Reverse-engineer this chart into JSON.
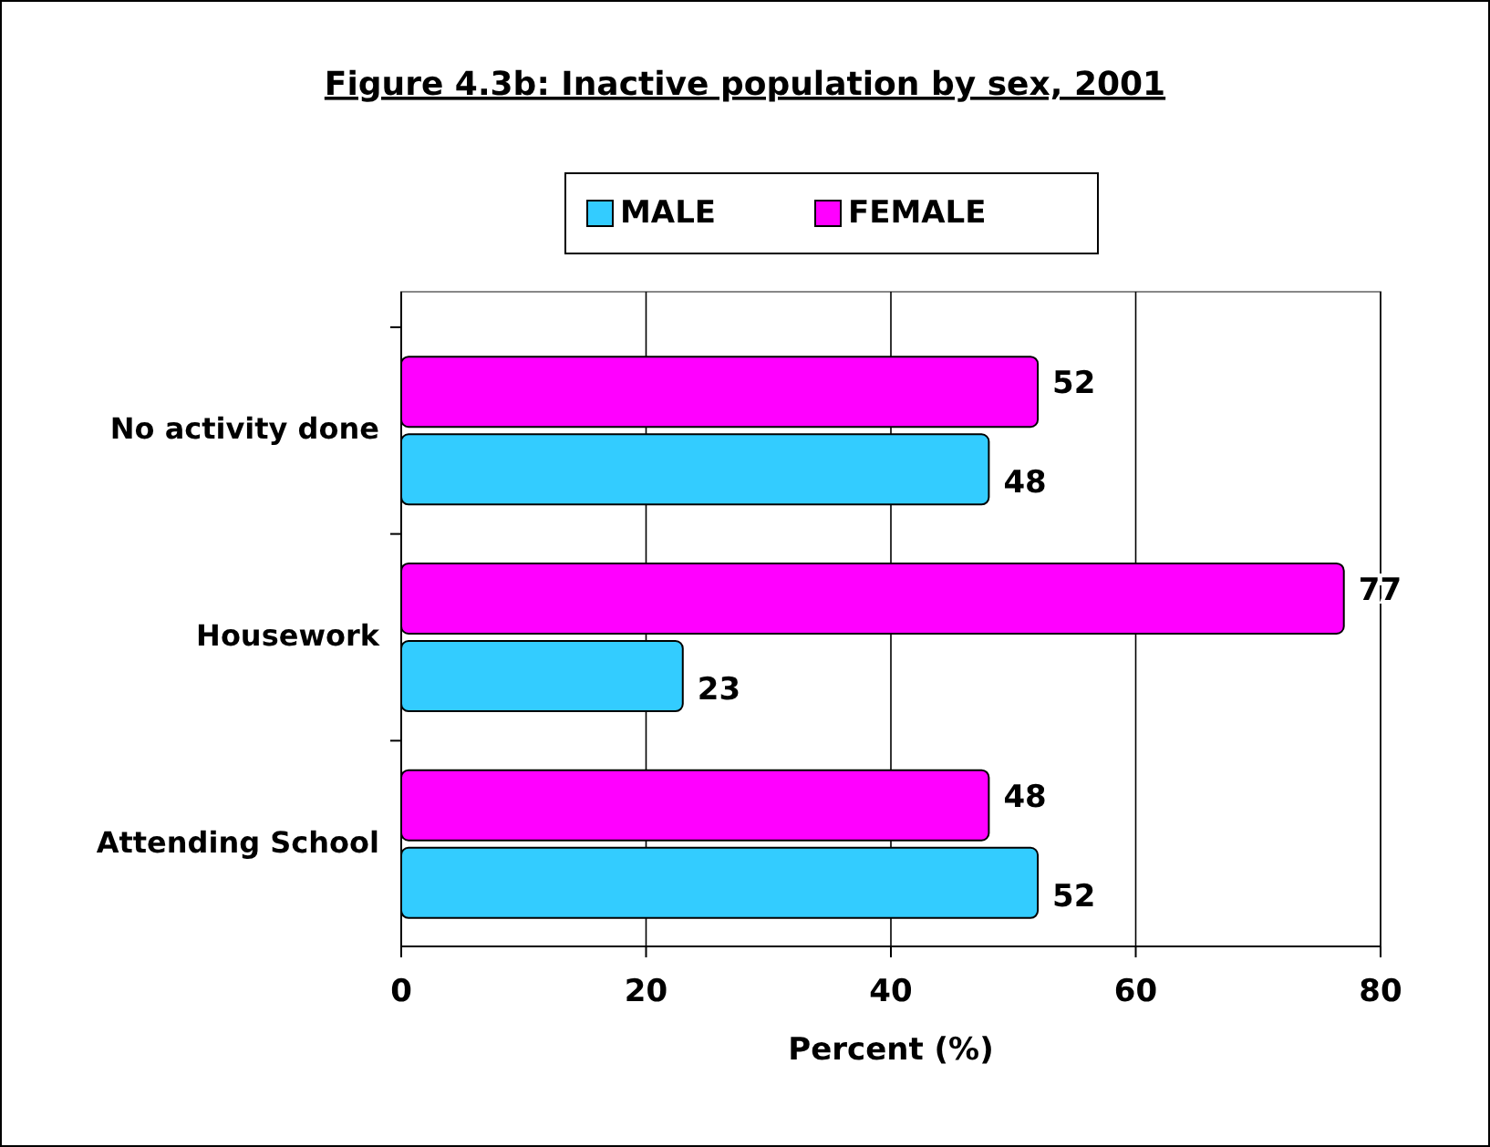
{
  "chart_data": {
    "type": "bar",
    "orientation": "horizontal",
    "title": "Figure 4.3b: Inactive population by sex, 2001",
    "xlabel": "Percent (%)",
    "categories": [
      "No activity done",
      "Housework",
      "Attending School"
    ],
    "series": [
      {
        "name": "MALE",
        "color": "#33ccff",
        "values": [
          48,
          23,
          52
        ]
      },
      {
        "name": "FEMALE",
        "color": "#ff00ff",
        "values": [
          52,
          77,
          48
        ]
      }
    ],
    "xlim": [
      0,
      80
    ],
    "xticks": [
      0,
      20,
      40,
      60,
      80
    ],
    "grid": "x",
    "legend": "top",
    "data_labels": true
  }
}
